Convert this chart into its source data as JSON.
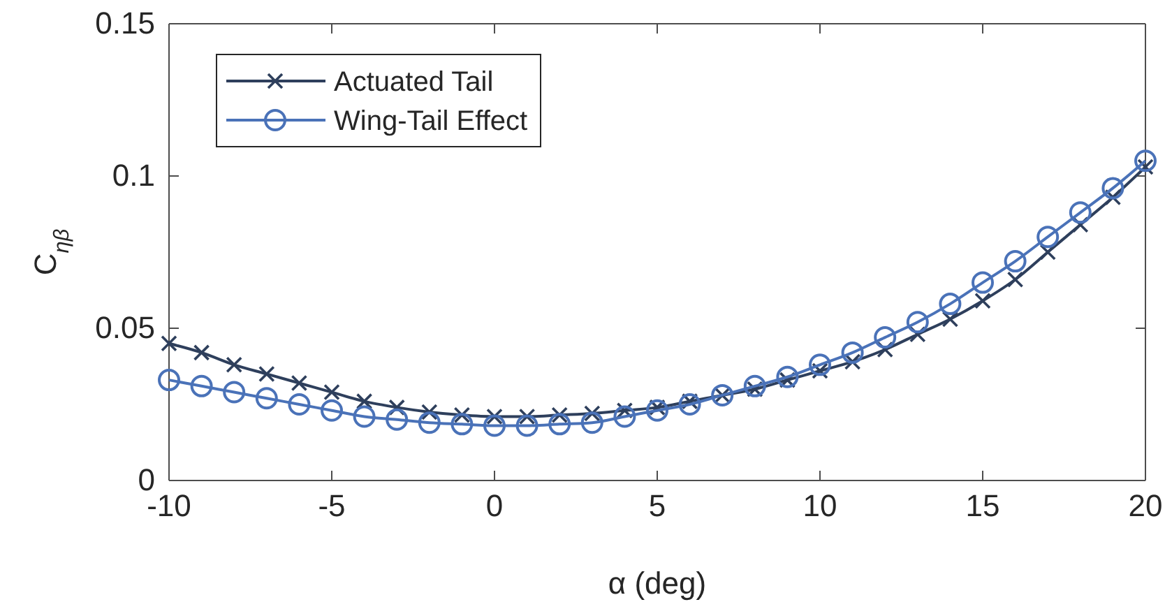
{
  "chart_data": {
    "type": "line",
    "xlabel": "α (deg)",
    "ylabel": "C$_{ηβ}$",
    "x": [
      -10,
      -9,
      -8,
      -7,
      -6,
      -5,
      -4,
      -3,
      -2,
      -1,
      0,
      1,
      2,
      3,
      4,
      5,
      6,
      7,
      8,
      9,
      10,
      11,
      12,
      13,
      14,
      15,
      16,
      17,
      18,
      19,
      20
    ],
    "xlim": [
      -10,
      20
    ],
    "xticks": [
      -10,
      -5,
      0,
      5,
      10,
      15,
      20
    ],
    "ylim": [
      0,
      0.15
    ],
    "yticks": [
      0,
      0.05,
      0.1,
      0.15
    ],
    "grid": false,
    "legend": "top left",
    "series": [
      {
        "name": "Actuated Tail",
        "color": "#2e3f5c",
        "marker": "cross",
        "values": [
          0.045,
          0.042,
          0.038,
          0.035,
          0.032,
          0.029,
          0.026,
          0.024,
          0.0225,
          0.0215,
          0.021,
          0.021,
          0.0215,
          0.022,
          0.023,
          0.024,
          0.026,
          0.028,
          0.03,
          0.033,
          0.036,
          0.039,
          0.043,
          0.048,
          0.053,
          0.059,
          0.066,
          0.075,
          0.084,
          0.093,
          0.103
        ]
      },
      {
        "name": "Wing-Tail Effect",
        "color": "#4a72b8",
        "marker": "circle",
        "values": [
          0.033,
          0.031,
          0.029,
          0.027,
          0.025,
          0.023,
          0.021,
          0.02,
          0.019,
          0.0185,
          0.018,
          0.018,
          0.0185,
          0.019,
          0.021,
          0.023,
          0.025,
          0.028,
          0.031,
          0.034,
          0.038,
          0.042,
          0.047,
          0.052,
          0.058,
          0.065,
          0.072,
          0.08,
          0.088,
          0.096,
          0.105
        ]
      }
    ]
  }
}
